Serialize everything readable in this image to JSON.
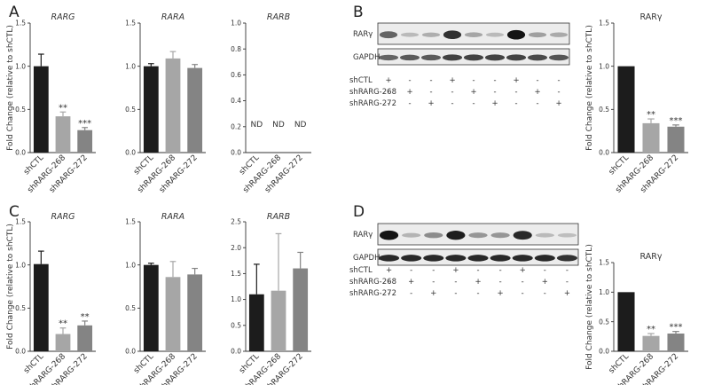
{
  "panels": [
    {
      "letter": "A",
      "pos": [
        10,
        19
      ]
    },
    {
      "letter": "B",
      "pos": [
        398,
        19
      ]
    },
    {
      "letter": "C",
      "pos": [
        10,
        244
      ]
    },
    {
      "letter": "D",
      "pos": [
        398,
        244
      ]
    }
  ],
  "ylabel": "Fold Change (relative to shCTL)",
  "bar_colors": [
    "#1c1c1c",
    "#a6a6a6",
    "#848484"
  ],
  "chart_data": [
    {
      "type": "bar",
      "title": "RARG",
      "italic_title": true,
      "ylim": [
        0,
        1.5
      ],
      "yticks": [
        0.0,
        0.5,
        1.0,
        1.5
      ],
      "categories": [
        "shCTL",
        "shRARG-268",
        "shRARG-272"
      ],
      "values": [
        1.0,
        0.42,
        0.26
      ],
      "errors": [
        0.14,
        0.05,
        0.03
      ],
      "annotations": [
        "",
        "**",
        "***"
      ]
    },
    {
      "type": "bar",
      "title": "RARA",
      "italic_title": true,
      "ylim": [
        0,
        1.5
      ],
      "yticks": [
        0.0,
        0.5,
        1.0,
        1.5
      ],
      "categories": [
        "shCTL",
        "shRARG-268",
        "shRARG-272"
      ],
      "values": [
        1.0,
        1.09,
        0.98
      ],
      "errors": [
        0.03,
        0.08,
        0.04
      ],
      "annotations": [
        "",
        "",
        ""
      ]
    },
    {
      "type": "bar",
      "title": "RARB",
      "italic_title": true,
      "ylim": [
        0,
        1.0
      ],
      "yticks": [
        0.0,
        0.2,
        0.4,
        0.6,
        0.8,
        1.0
      ],
      "categories": [
        "shCTL",
        "shRARG-268",
        "shRARG-272"
      ],
      "values": [
        0,
        0,
        0
      ],
      "errors": [
        0,
        0,
        0
      ],
      "annotations": [
        "ND",
        "ND",
        "ND"
      ]
    },
    {
      "type": "bar",
      "title": "RARγ",
      "italic_title": false,
      "ylim": [
        0,
        1.5
      ],
      "yticks": [
        0.0,
        0.5,
        1.0,
        1.5
      ],
      "categories": [
        "shCTL",
        "shRARG-268",
        "shRARG-272"
      ],
      "values": [
        1.0,
        0.34,
        0.3
      ],
      "errors": [
        0.0,
        0.05,
        0.02
      ],
      "annotations": [
        "",
        "**",
        "***"
      ]
    },
    {
      "type": "bar",
      "title": "RARG",
      "italic_title": true,
      "ylim": [
        0,
        1.5
      ],
      "yticks": [
        0.0,
        0.5,
        1.0,
        1.5
      ],
      "categories": [
        "shCTL",
        "shRARG-268",
        "shRARG-272"
      ],
      "values": [
        1.01,
        0.2,
        0.3
      ],
      "errors": [
        0.15,
        0.07,
        0.05
      ],
      "annotations": [
        "",
        "**",
        "**"
      ]
    },
    {
      "type": "bar",
      "title": "RARA",
      "italic_title": true,
      "ylim": [
        0,
        1.5
      ],
      "yticks": [
        0.0,
        0.5,
        1.0,
        1.5
      ],
      "categories": [
        "shCTL",
        "shRARG-268",
        "shRARG-272"
      ],
      "values": [
        1.0,
        0.86,
        0.89
      ],
      "errors": [
        0.02,
        0.18,
        0.07
      ],
      "annotations": [
        "",
        "",
        ""
      ]
    },
    {
      "type": "bar",
      "title": "RARB",
      "italic_title": true,
      "ylim": [
        0,
        2.5
      ],
      "yticks": [
        0.0,
        0.5,
        1.0,
        1.5,
        2.0,
        2.5
      ],
      "categories": [
        "shCTL",
        "shRARG-268",
        "shRARG-272"
      ],
      "values": [
        1.1,
        1.17,
        1.6
      ],
      "errors": [
        0.58,
        1.1,
        0.31
      ],
      "annotations": [
        "",
        "",
        ""
      ]
    },
    {
      "type": "bar",
      "title": "RARγ",
      "italic_title": false,
      "ylim": [
        0,
        1.5
      ],
      "yticks": [
        0.0,
        0.5,
        1.0,
        1.5
      ],
      "categories": [
        "shCTL",
        "shRARG-268",
        "shRARG-272"
      ],
      "values": [
        1.0,
        0.26,
        0.3
      ],
      "errors": [
        0.0,
        0.04,
        0.035
      ],
      "annotations": [
        "",
        "**",
        "***"
      ]
    }
  ],
  "blots": [
    {
      "labels": {
        "target": "RARγ",
        "control": "GAPDH"
      },
      "conditions": [
        {
          "name": "shCTL",
          "signs": [
            "+",
            "-",
            "-",
            "+",
            "-",
            "-",
            "+",
            "-",
            "-"
          ]
        },
        {
          "name": "shRARG-268",
          "signs": [
            "-",
            "+",
            "-",
            "-",
            "+",
            "-",
            "-",
            "+",
            "-"
          ]
        },
        {
          "name": "shRARG-272",
          "signs": [
            "-",
            "-",
            "+",
            "-",
            "-",
            "+",
            "-",
            "-",
            "+"
          ]
        }
      ],
      "target_intensity": [
        0.55,
        0.12,
        0.18,
        0.8,
        0.22,
        0.12,
        0.95,
        0.25,
        0.2
      ],
      "control_intensity": [
        0.55,
        0.6,
        0.6,
        0.72,
        0.72,
        0.72,
        0.72,
        0.68,
        0.62
      ]
    },
    {
      "labels": {
        "target": "RARγ",
        "control": "GAPDH"
      },
      "conditions": [
        {
          "name": "shCTL",
          "signs": [
            "+",
            "-",
            "-",
            "+",
            "-",
            "-",
            "+",
            "-",
            "-"
          ]
        },
        {
          "name": "shRARG-268",
          "signs": [
            "-",
            "+",
            "-",
            "-",
            "+",
            "-",
            "-",
            "+",
            "-"
          ]
        },
        {
          "name": "shRARG-272",
          "signs": [
            "-",
            "-",
            "+",
            "-",
            "-",
            "+",
            "-",
            "-",
            "+"
          ]
        }
      ],
      "target_intensity": [
        0.95,
        0.15,
        0.35,
        0.9,
        0.3,
        0.3,
        0.85,
        0.12,
        0.1
      ],
      "control_intensity": [
        0.85,
        0.85,
        0.85,
        0.85,
        0.85,
        0.85,
        0.85,
        0.85,
        0.8
      ]
    }
  ]
}
